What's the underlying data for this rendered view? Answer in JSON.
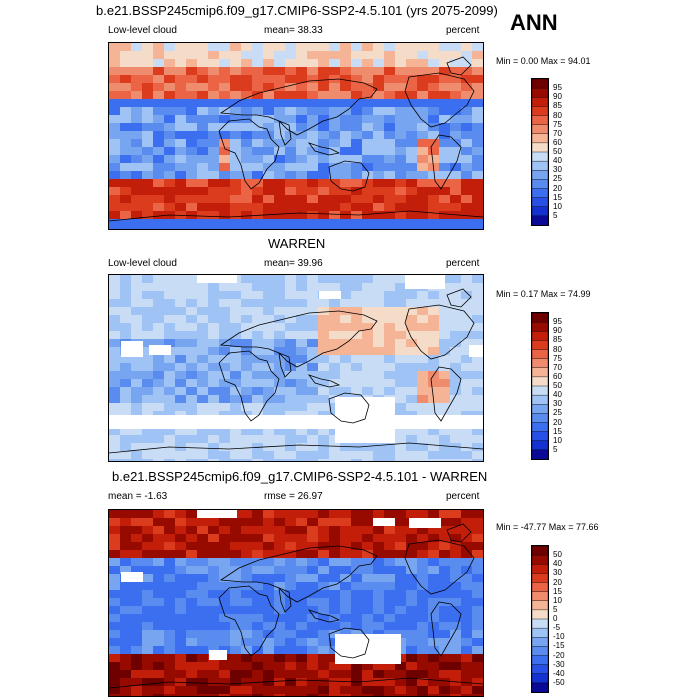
{
  "ann_label": "ANN",
  "panels": [
    {
      "title": "b.e21.BSSP245cmip6.f09_g17.CMIP6-SSP2-4.5.101 (yrs 2075-2099)",
      "left_label": "Low-level cloud",
      "mid_label": "mean=  38.33",
      "right_label": "percent",
      "minmax": "Min =   0.00 Max =  94.01"
    },
    {
      "title": "WARREN",
      "left_label": "Low-level cloud",
      "mid_label": "mean=  39.96",
      "right_label": "percent",
      "minmax": "Min =   0.17 Max =  74.99"
    },
    {
      "title": "b.e21.BSSP245cmip6.f09_g17.CMIP6-SSP2-4.5.101 - WARREN",
      "left_label": "mean =  -1.63",
      "mid_label": "rmse =  26.97",
      "right_label": "percent",
      "minmax": "Min = -47.77 Max =  77.66"
    }
  ],
  "chart_data": [
    {
      "type": "heatmap",
      "title": "b.e21.BSSP245cmip6.f09_g17.CMIP6-SSP2-4.5.101 (yrs 2075-2099)",
      "variable": "Low-level cloud",
      "units": "percent",
      "mean": 38.33,
      "min": 0.0,
      "max": 94.01,
      "colorbar_levels": [
        5,
        10,
        15,
        20,
        25,
        30,
        40,
        50,
        60,
        70,
        75,
        80,
        85,
        90,
        95
      ],
      "colorbar_labels": [
        "95",
        "90",
        "85",
        "80",
        "75",
        "70",
        "60",
        "50",
        "40",
        "30",
        "25",
        "20",
        "15",
        "10",
        "5"
      ],
      "colors": [
        "#0a0a96",
        "#1432d2",
        "#2850e6",
        "#3c6ef0",
        "#5a8cf0",
        "#78a5f0",
        "#a0c3f5",
        "#c8dcf5",
        "#f5dcc8",
        "#f5b496",
        "#f08c6e",
        "#eb6446",
        "#dc3c1e",
        "#c31e0a",
        "#960a00",
        "#6e0000"
      ]
    },
    {
      "type": "heatmap",
      "title": "WARREN",
      "variable": "Low-level cloud",
      "units": "percent",
      "mean": 39.96,
      "min": 0.17,
      "max": 74.99,
      "colorbar_levels": [
        5,
        10,
        15,
        20,
        25,
        30,
        40,
        50,
        60,
        70,
        75,
        80,
        85,
        90,
        95
      ],
      "colorbar_labels": [
        "95",
        "90",
        "85",
        "80",
        "75",
        "70",
        "60",
        "50",
        "40",
        "30",
        "25",
        "20",
        "15",
        "10",
        "5"
      ],
      "colors": [
        "#0a0a96",
        "#1432d2",
        "#2850e6",
        "#3c6ef0",
        "#5a8cf0",
        "#78a5f0",
        "#a0c3f5",
        "#c8dcf5",
        "#f5dcc8",
        "#f5b496",
        "#f08c6e",
        "#eb6446",
        "#dc3c1e",
        "#c31e0a",
        "#960a00",
        "#6e0000"
      ]
    },
    {
      "type": "heatmap",
      "title": "b.e21.BSSP245cmip6.f09_g17.CMIP6-SSP2-4.5.101 - WARREN",
      "units": "percent",
      "mean": -1.63,
      "rmse": 26.97,
      "min": -47.77,
      "max": 77.66,
      "colorbar_levels": [
        -50,
        -40,
        -30,
        -20,
        -15,
        -10,
        -5,
        0,
        5,
        10,
        15,
        20,
        30,
        40,
        50
      ],
      "colorbar_labels": [
        "50",
        "40",
        "30",
        "20",
        "15",
        "10",
        "5",
        "0",
        "-5",
        "-10",
        "-15",
        "-20",
        "-30",
        "-40",
        "-50"
      ],
      "colors": [
        "#0a0a96",
        "#1432d2",
        "#2850e6",
        "#3c6ef0",
        "#5a8cf0",
        "#78a5f0",
        "#a0c3f5",
        "#c8dcf5",
        "#f5dcc8",
        "#f5b496",
        "#f08c6e",
        "#eb6446",
        "#dc3c1e",
        "#c31e0a",
        "#960a00",
        "#6e0000"
      ]
    }
  ]
}
